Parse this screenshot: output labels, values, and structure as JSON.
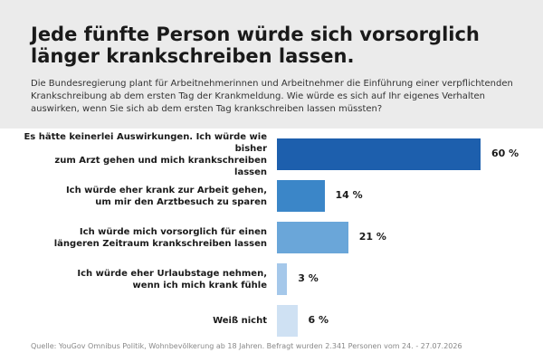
{
  "chart_data": {
    "type": "bar",
    "orientation": "horizontal",
    "title": "Jede fünfte Person würde sich vorsorglich länger krankschreiben lassen.",
    "subtitle": "Die Bundesregierung plant für Arbeitnehmerinnen und Arbeitnehmer die Einführung einer verpflichtenden Krankschreibung ab dem ersten Tag der Krankmeldung. Wie würde es sich auf Ihr eigenes Verhalten auswirken, wenn Sie sich ab dem ersten Tag krankschreiben lassen müssten?",
    "categories": [
      "Es hätte keinerlei Auswirkungen. Ich würde wie bisher\nzum Arzt gehen und mich krankschreiben lassen",
      "Ich würde eher krank zur Arbeit gehen,\num mir den Arztbesuch zu sparen",
      "Ich würde mich vorsorglich für einen\nlängeren Zeitraum krankschreiben lassen",
      "Ich würde eher Urlaubstage nehmen,\nwenn ich mich krank fühle",
      "Weiß nicht"
    ],
    "values": [
      60,
      14,
      21,
      3,
      6
    ],
    "value_labels": [
      "60 %",
      "14 %",
      "21 %",
      "3 %",
      "6 %"
    ],
    "colors": [
      "#1d5fad",
      "#3b86c8",
      "#6aa6d9",
      "#a5c8ea",
      "#cfe1f3"
    ],
    "source": "Quelle: YouGov Omnibus Politik, Wohnbevölkerung ab 18 Jahren. Befragt wurden 2.341 Personen vom 24. - 27.07.2026"
  }
}
